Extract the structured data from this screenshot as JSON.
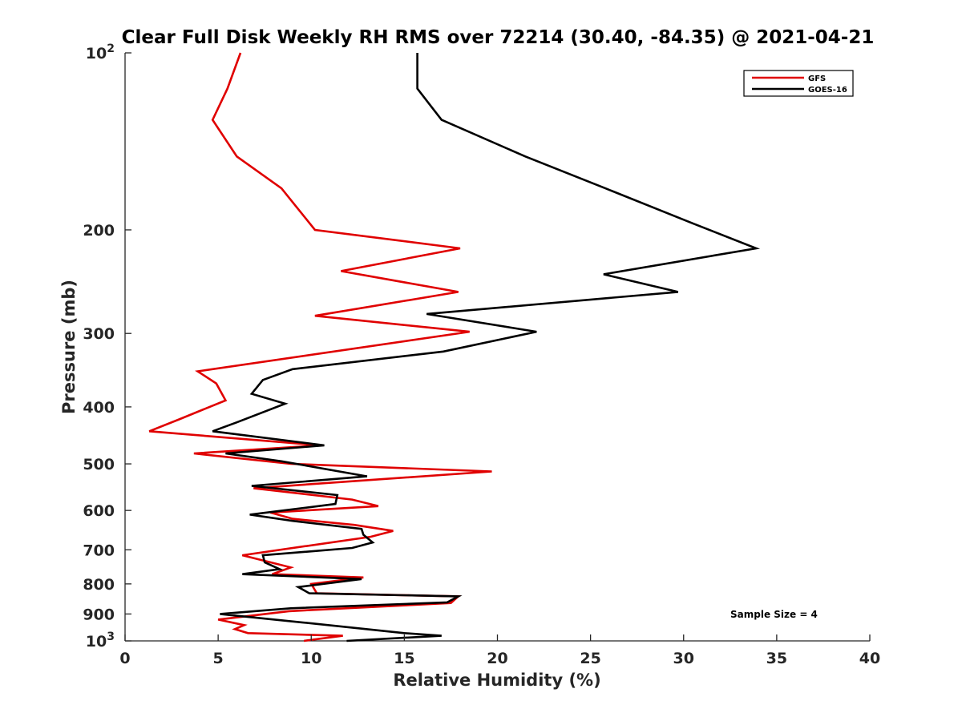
{
  "chart_data": {
    "type": "line",
    "title": "Clear Full Disk Weekly RH RMS over 72214 (30.40, -84.35) @ 2021-04-21",
    "xlabel": "Relative Humidity (%)",
    "ylabel": "Pressure (mb)",
    "xlim": [
      0,
      40
    ],
    "ylim": [
      100,
      1000
    ],
    "yscale": "log",
    "y_reversed": true,
    "x_ticks": [
      0,
      5,
      10,
      15,
      20,
      25,
      30,
      35,
      40
    ],
    "x_tick_labels": [
      "0",
      "5",
      "10",
      "15",
      "20",
      "25",
      "30",
      "35",
      "40"
    ],
    "y_ticks": [
      200,
      300,
      400,
      500,
      600,
      700,
      800,
      900
    ],
    "y_tick_labels": [
      "200",
      "300",
      "400",
      "500",
      "600",
      "700",
      "800",
      "900"
    ],
    "y_log_ticks": [
      {
        "value": 100,
        "base": "10",
        "exp": "2"
      },
      {
        "value": 1000,
        "base": "10",
        "exp": "3"
      }
    ],
    "grid": false,
    "legend_position": "top-right",
    "annotation": "Sample Size = 4",
    "series": [
      {
        "name": "GFS",
        "color": "#e00000",
        "points": [
          [
            6.2,
            100
          ],
          [
            5.5,
            115
          ],
          [
            4.7,
            130
          ],
          [
            6.0,
            150
          ],
          [
            8.4,
            170
          ],
          [
            10.2,
            200
          ],
          [
            18.0,
            215
          ],
          [
            11.6,
            235
          ],
          [
            17.9,
            255
          ],
          [
            10.2,
            280
          ],
          [
            18.5,
            298
          ],
          [
            3.9,
            348
          ],
          [
            4.9,
            365
          ],
          [
            5.4,
            390
          ],
          [
            2.9,
            420
          ],
          [
            1.3,
            440
          ],
          [
            10.5,
            465
          ],
          [
            3.7,
            480
          ],
          [
            8.9,
            500
          ],
          [
            19.7,
            515
          ],
          [
            6.9,
            550
          ],
          [
            12.2,
            575
          ],
          [
            13.6,
            590
          ],
          [
            7.8,
            605
          ],
          [
            9.0,
            620
          ],
          [
            12.3,
            635
          ],
          [
            14.4,
            650
          ],
          [
            13.2,
            665
          ],
          [
            6.3,
            715
          ],
          [
            7.8,
            735
          ],
          [
            8.9,
            750
          ],
          [
            7.9,
            770
          ],
          [
            12.8,
            780
          ],
          [
            10.0,
            800
          ],
          [
            10.3,
            830
          ],
          [
            17.9,
            840
          ],
          [
            17.5,
            862
          ],
          [
            8.8,
            890
          ],
          [
            5.0,
            920
          ],
          [
            6.4,
            940
          ],
          [
            5.9,
            955
          ],
          [
            6.6,
            970
          ],
          [
            11.7,
            980
          ],
          [
            9.6,
            1000
          ]
        ]
      },
      {
        "name": "GOES-16",
        "color": "#000000",
        "points": [
          [
            15.7,
            100
          ],
          [
            15.7,
            115
          ],
          [
            17.0,
            130
          ],
          [
            21.5,
            150
          ],
          [
            25.8,
            170
          ],
          [
            30.5,
            195
          ],
          [
            33.9,
            215
          ],
          [
            25.7,
            238
          ],
          [
            29.7,
            255
          ],
          [
            16.2,
            278
          ],
          [
            22.1,
            298
          ],
          [
            17.1,
            322
          ],
          [
            9.0,
            345
          ],
          [
            7.4,
            360
          ],
          [
            6.8,
            380
          ],
          [
            8.6,
            395
          ],
          [
            6.0,
            425
          ],
          [
            4.7,
            440
          ],
          [
            10.7,
            465
          ],
          [
            5.4,
            480
          ],
          [
            8.4,
            495
          ],
          [
            13.0,
            525
          ],
          [
            6.8,
            545
          ],
          [
            11.4,
            565
          ],
          [
            11.3,
            585
          ],
          [
            6.7,
            610
          ],
          [
            9.0,
            625
          ],
          [
            12.7,
            645
          ],
          [
            12.8,
            660
          ],
          [
            13.3,
            680
          ],
          [
            12.2,
            695
          ],
          [
            7.4,
            715
          ],
          [
            7.5,
            735
          ],
          [
            8.3,
            755
          ],
          [
            6.3,
            770
          ],
          [
            12.7,
            785
          ],
          [
            9.3,
            810
          ],
          [
            9.9,
            830
          ],
          [
            17.9,
            840
          ],
          [
            17.3,
            860
          ],
          [
            8.9,
            880
          ],
          [
            5.1,
            900
          ],
          [
            9.5,
            930
          ],
          [
            15.0,
            970
          ],
          [
            17.0,
            980
          ],
          [
            11.9,
            1000
          ]
        ]
      }
    ]
  }
}
